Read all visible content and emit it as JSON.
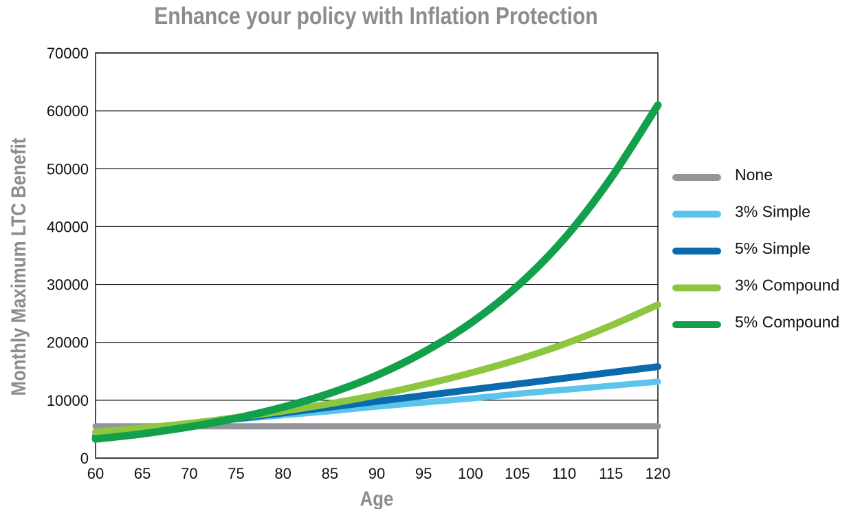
{
  "chart_data": {
    "type": "line",
    "title": "Enhance your policy with Inflation Protection",
    "xlabel": "Age",
    "ylabel": "Monthly Maximum LTC Benefit",
    "xlim": [
      60,
      120
    ],
    "ylim": [
      0,
      70000
    ],
    "x_ticks": [
      60,
      65,
      70,
      75,
      80,
      85,
      90,
      95,
      100,
      105,
      110,
      115,
      120
    ],
    "y_ticks": [
      0,
      10000,
      20000,
      30000,
      40000,
      50000,
      60000,
      70000
    ],
    "grid": "horizontal",
    "legend_position": "right",
    "x": [
      60,
      65,
      70,
      75,
      80,
      85,
      90,
      95,
      100,
      105,
      110,
      115,
      120
    ],
    "series": [
      {
        "name": "None",
        "color": "#939598",
        "values": [
          5500,
          5500,
          5500,
          5500,
          5500,
          5500,
          5500,
          5500,
          5500,
          5500,
          5500,
          5500,
          5500
        ]
      },
      {
        "name": "3% Simple",
        "color": "#5bc4ec",
        "values": [
          4500,
          5200,
          6000,
          6700,
          7400,
          8100,
          8900,
          9600,
          10300,
          11100,
          11800,
          12500,
          13200
        ]
      },
      {
        "name": "5% Simple",
        "color": "#0a6aad",
        "values": [
          3800,
          4800,
          5800,
          6800,
          7800,
          8800,
          9800,
          10800,
          11800,
          12800,
          13800,
          14800,
          15800
        ]
      },
      {
        "name": "3% Compound",
        "color": "#8dc63f",
        "values": [
          4500,
          5200,
          6000,
          7000,
          8100,
          9400,
          10900,
          12700,
          14700,
          17000,
          19700,
          22900,
          26500
        ]
      },
      {
        "name": "5% Compound",
        "color": "#12a04a",
        "values": [
          3300,
          4200,
          5400,
          6900,
          8800,
          11200,
          14300,
          18300,
          23300,
          29700,
          37900,
          48400,
          61000
        ]
      }
    ]
  }
}
